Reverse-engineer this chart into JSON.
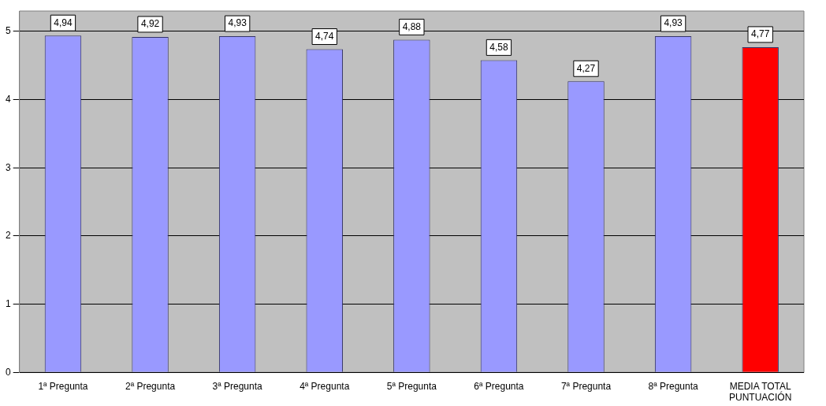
{
  "chart_data": {
    "type": "bar",
    "categories": [
      "1ª Pregunta",
      "2ª Pregunta",
      "3ª Pregunta",
      "4ª Pregunta",
      "5ª Pregunta",
      "6ª Pregunta",
      "7ª Pregunta",
      "8ª Pregunta",
      "MEDIA TOTAL PUNTUACIÓN"
    ],
    "values": [
      4.94,
      4.92,
      4.93,
      4.74,
      4.88,
      4.58,
      4.27,
      4.93,
      4.77
    ],
    "value_labels": [
      "4,94",
      "4,92",
      "4,93",
      "4,74",
      "4,88",
      "4,58",
      "4,27",
      "4,93",
      "4,77"
    ],
    "colors": [
      "#9999ff",
      "#9999ff",
      "#9999ff",
      "#9999ff",
      "#9999ff",
      "#9999ff",
      "#9999ff",
      "#9999ff",
      "#ff0000"
    ],
    "ylim": [
      0,
      5.3
    ],
    "yticks": [
      0,
      1,
      2,
      3,
      4,
      5
    ],
    "grid": "y",
    "legend": false
  }
}
